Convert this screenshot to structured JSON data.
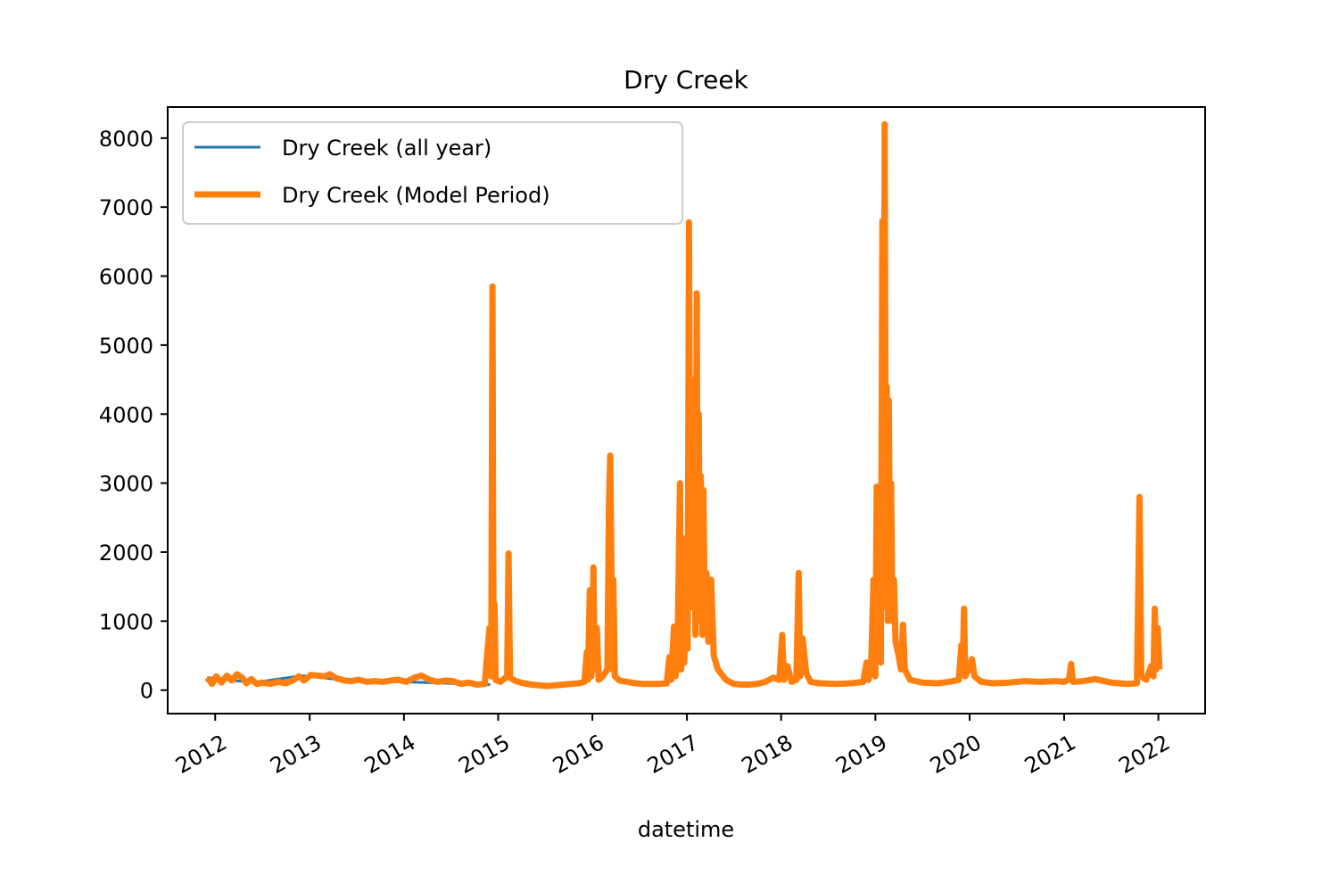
{
  "chart_data": {
    "type": "line",
    "title": "Dry Creek",
    "xlabel": "datetime",
    "ylabel": "",
    "x_scale": "date",
    "xlim": [
      "2011-07-01",
      "2022-07-01"
    ],
    "ylim": [
      -340,
      8450
    ],
    "x_ticks": [
      {
        "date": "2012-01-01",
        "label": "2012"
      },
      {
        "date": "2013-01-01",
        "label": "2013"
      },
      {
        "date": "2014-01-01",
        "label": "2014"
      },
      {
        "date": "2015-01-01",
        "label": "2015"
      },
      {
        "date": "2016-01-01",
        "label": "2016"
      },
      {
        "date": "2017-01-01",
        "label": "2017"
      },
      {
        "date": "2018-01-01",
        "label": "2018"
      },
      {
        "date": "2019-01-01",
        "label": "2019"
      },
      {
        "date": "2020-01-01",
        "label": "2020"
      },
      {
        "date": "2021-01-01",
        "label": "2021"
      },
      {
        "date": "2022-01-01",
        "label": "2022"
      }
    ],
    "y_ticks": [
      0,
      1000,
      2000,
      3000,
      4000,
      5000,
      6000,
      7000,
      8000
    ],
    "grid": false,
    "legend_position": "upper-left",
    "series": [
      {
        "name": "Dry Creek (all year)",
        "color": "#1f77b4",
        "points": [
          [
            "2011-12-01",
            180
          ],
          [
            "2012-06-01",
            110
          ],
          [
            "2012-12-01",
            210
          ],
          [
            "2013-06-01",
            140
          ],
          [
            "2014-01-01",
            120
          ],
          [
            "2014-12-01",
            80
          ]
        ]
      },
      {
        "name": "Dry Creek (Model Period)",
        "color": "#ff7f0e",
        "points": [
          [
            "2011-12-01",
            180
          ],
          [
            "2011-12-20",
            90
          ],
          [
            "2012-01-05",
            200
          ],
          [
            "2012-01-25",
            110
          ],
          [
            "2012-02-15",
            210
          ],
          [
            "2012-03-05",
            140
          ],
          [
            "2012-03-25",
            230
          ],
          [
            "2012-04-15",
            180
          ],
          [
            "2012-05-01",
            100
          ],
          [
            "2012-05-20",
            160
          ],
          [
            "2012-06-10",
            90
          ],
          [
            "2012-07-01",
            110
          ],
          [
            "2012-08-01",
            90
          ],
          [
            "2012-09-01",
            120
          ],
          [
            "2012-10-01",
            100
          ],
          [
            "2012-11-01",
            150
          ],
          [
            "2012-11-20",
            200
          ],
          [
            "2012-12-10",
            140
          ],
          [
            "2013-01-05",
            220
          ],
          [
            "2013-02-01",
            210
          ],
          [
            "2013-03-01",
            200
          ],
          [
            "2013-03-20",
            230
          ],
          [
            "2013-04-15",
            170
          ],
          [
            "2013-05-15",
            140
          ],
          [
            "2013-06-10",
            130
          ],
          [
            "2013-07-10",
            150
          ],
          [
            "2013-08-10",
            120
          ],
          [
            "2013-09-10",
            130
          ],
          [
            "2013-10-10",
            120
          ],
          [
            "2013-11-10",
            140
          ],
          [
            "2013-12-10",
            150
          ],
          [
            "2014-01-10",
            120
          ],
          [
            "2014-02-10",
            180
          ],
          [
            "2014-03-10",
            210
          ],
          [
            "2014-04-10",
            150
          ],
          [
            "2014-05-10",
            120
          ],
          [
            "2014-06-10",
            140
          ],
          [
            "2014-07-10",
            130
          ],
          [
            "2014-08-10",
            90
          ],
          [
            "2014-09-10",
            110
          ],
          [
            "2014-10-10",
            80
          ],
          [
            "2014-11-10",
            90
          ],
          [
            "2014-11-28",
            900
          ],
          [
            "2014-12-05",
            200
          ],
          [
            "2014-12-10",
            5850
          ],
          [
            "2014-12-14",
            300
          ],
          [
            "2014-12-18",
            1250
          ],
          [
            "2014-12-22",
            150
          ],
          [
            "2015-01-10",
            120
          ],
          [
            "2015-02-05",
            200
          ],
          [
            "2015-02-10",
            1980
          ],
          [
            "2015-02-16",
            180
          ],
          [
            "2015-03-10",
            130
          ],
          [
            "2015-04-10",
            100
          ],
          [
            "2015-05-10",
            80
          ],
          [
            "2015-06-10",
            70
          ],
          [
            "2015-07-10",
            60
          ],
          [
            "2015-08-10",
            70
          ],
          [
            "2015-09-10",
            80
          ],
          [
            "2015-10-10",
            90
          ],
          [
            "2015-11-10",
            100
          ],
          [
            "2015-12-01",
            120
          ],
          [
            "2015-12-10",
            550
          ],
          [
            "2015-12-15",
            150
          ],
          [
            "2015-12-22",
            1450
          ],
          [
            "2015-12-28",
            200
          ],
          [
            "2016-01-05",
            1780
          ],
          [
            "2016-01-10",
            300
          ],
          [
            "2016-01-18",
            900
          ],
          [
            "2016-01-25",
            150
          ],
          [
            "2016-02-10",
            200
          ],
          [
            "2016-02-28",
            300
          ],
          [
            "2016-03-05",
            2700
          ],
          [
            "2016-03-10",
            3400
          ],
          [
            "2016-03-14",
            2000
          ],
          [
            "2016-03-18",
            300
          ],
          [
            "2016-03-22",
            1600
          ],
          [
            "2016-03-28",
            200
          ],
          [
            "2016-04-15",
            140
          ],
          [
            "2016-05-15",
            120
          ],
          [
            "2016-06-15",
            100
          ],
          [
            "2016-07-15",
            90
          ],
          [
            "2016-08-15",
            90
          ],
          [
            "2016-09-15",
            90
          ],
          [
            "2016-10-15",
            100
          ],
          [
            "2016-10-25",
            480
          ],
          [
            "2016-11-01",
            150
          ],
          [
            "2016-11-12",
            920
          ],
          [
            "2016-11-18",
            200
          ],
          [
            "2016-11-25",
            450
          ],
          [
            "2016-12-05",
            3000
          ],
          [
            "2016-12-10",
            300
          ],
          [
            "2016-12-16",
            2200
          ],
          [
            "2016-12-22",
            400
          ],
          [
            "2016-12-28",
            1800
          ],
          [
            "2017-01-04",
            600
          ],
          [
            "2017-01-09",
            6780
          ],
          [
            "2017-01-14",
            2000
          ],
          [
            "2017-01-19",
            4500
          ],
          [
            "2017-01-23",
            1200
          ],
          [
            "2017-01-28",
            3000
          ],
          [
            "2017-02-03",
            800
          ],
          [
            "2017-02-08",
            5750
          ],
          [
            "2017-02-12",
            1500
          ],
          [
            "2017-02-16",
            4000
          ],
          [
            "2017-02-20",
            1000
          ],
          [
            "2017-02-24",
            3100
          ],
          [
            "2017-03-01",
            800
          ],
          [
            "2017-03-06",
            2900
          ],
          [
            "2017-03-12",
            900
          ],
          [
            "2017-03-18",
            1700
          ],
          [
            "2017-03-25",
            700
          ],
          [
            "2017-04-05",
            1600
          ],
          [
            "2017-04-15",
            500
          ],
          [
            "2017-05-01",
            300
          ],
          [
            "2017-06-01",
            150
          ],
          [
            "2017-07-01",
            90
          ],
          [
            "2017-08-01",
            80
          ],
          [
            "2017-09-01",
            80
          ],
          [
            "2017-10-01",
            90
          ],
          [
            "2017-11-01",
            120
          ],
          [
            "2017-12-01",
            180
          ],
          [
            "2017-12-25",
            150
          ],
          [
            "2018-01-05",
            800
          ],
          [
            "2018-01-12",
            150
          ],
          [
            "2018-01-25",
            350
          ],
          [
            "2018-02-10",
            120
          ],
          [
            "2018-03-01",
            150
          ],
          [
            "2018-03-10",
            1700
          ],
          [
            "2018-03-16",
            200
          ],
          [
            "2018-03-25",
            750
          ],
          [
            "2018-04-08",
            250
          ],
          [
            "2018-04-25",
            120
          ],
          [
            "2018-06-01",
            100
          ],
          [
            "2018-08-01",
            90
          ],
          [
            "2018-10-01",
            100
          ],
          [
            "2018-11-15",
            120
          ],
          [
            "2018-11-28",
            400
          ],
          [
            "2018-12-05",
            150
          ],
          [
            "2018-12-15",
            300
          ],
          [
            "2018-12-25",
            1600
          ],
          [
            "2019-01-01",
            200
          ],
          [
            "2019-01-06",
            2950
          ],
          [
            "2019-01-12",
            800
          ],
          [
            "2019-01-18",
            2500
          ],
          [
            "2019-01-22",
            400
          ],
          [
            "2019-01-28",
            6800
          ],
          [
            "2019-02-01",
            1200
          ],
          [
            "2019-02-06",
            8200
          ],
          [
            "2019-02-10",
            2500
          ],
          [
            "2019-02-14",
            4400
          ],
          [
            "2019-02-18",
            1000
          ],
          [
            "2019-02-22",
            4200
          ],
          [
            "2019-02-27",
            1500
          ],
          [
            "2019-03-03",
            3000
          ],
          [
            "2019-03-08",
            1000
          ],
          [
            "2019-03-14",
            1600
          ],
          [
            "2019-03-20",
            700
          ],
          [
            "2019-04-01",
            500
          ],
          [
            "2019-04-10",
            300
          ],
          [
            "2019-04-18",
            950
          ],
          [
            "2019-04-25",
            300
          ],
          [
            "2019-05-15",
            150
          ],
          [
            "2019-07-01",
            110
          ],
          [
            "2019-09-01",
            100
          ],
          [
            "2019-10-15",
            120
          ],
          [
            "2019-11-20",
            150
          ],
          [
            "2019-11-30",
            650
          ],
          [
            "2019-12-05",
            250
          ],
          [
            "2019-12-10",
            1180
          ],
          [
            "2019-12-15",
            200
          ],
          [
            "2019-12-28",
            300
          ],
          [
            "2020-01-10",
            450
          ],
          [
            "2020-01-20",
            200
          ],
          [
            "2020-02-15",
            120
          ],
          [
            "2020-04-01",
            100
          ],
          [
            "2020-06-01",
            110
          ],
          [
            "2020-08-01",
            130
          ],
          [
            "2020-10-01",
            120
          ],
          [
            "2020-12-01",
            130
          ],
          [
            "2021-01-01",
            120
          ],
          [
            "2021-01-20",
            160
          ],
          [
            "2021-01-28",
            380
          ],
          [
            "2021-02-04",
            120
          ],
          [
            "2021-03-15",
            130
          ],
          [
            "2021-05-01",
            160
          ],
          [
            "2021-07-01",
            110
          ],
          [
            "2021-09-01",
            90
          ],
          [
            "2021-10-10",
            100
          ],
          [
            "2021-10-20",
            2800
          ],
          [
            "2021-10-27",
            200
          ],
          [
            "2021-11-15",
            150
          ],
          [
            "2021-12-05",
            350
          ],
          [
            "2021-12-13",
            200
          ],
          [
            "2021-12-18",
            1180
          ],
          [
            "2021-12-24",
            300
          ],
          [
            "2021-12-30",
            900
          ],
          [
            "2022-01-05",
            300
          ]
        ]
      }
    ]
  }
}
